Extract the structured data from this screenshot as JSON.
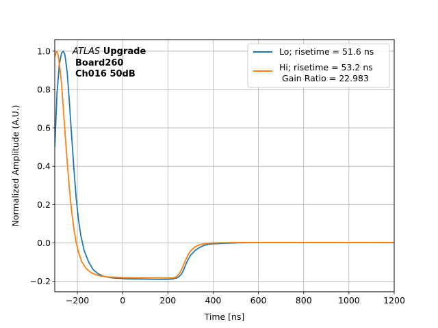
{
  "chart_data": {
    "type": "line",
    "xlabel": "Time [ns]",
    "ylabel": "Normalized Amplitude (A.U.)",
    "xlim": [
      -300,
      1200
    ],
    "ylim": [
      -0.255,
      1.06
    ],
    "xticks": [
      -200,
      0,
      200,
      400,
      600,
      800,
      1000,
      1200
    ],
    "yticks": [
      -0.2,
      0.0,
      0.2,
      0.4,
      0.6,
      0.8,
      1.0
    ],
    "xtick_labels": [
      "−200",
      "0",
      "200",
      "400",
      "600",
      "800",
      "1000",
      "1200"
    ],
    "ytick_labels": [
      "−0.2",
      "0.0",
      "0.2",
      "0.4",
      "0.6",
      "0.8",
      "1.0"
    ],
    "grid": true,
    "legend_position": "top-right",
    "annotation": {
      "line1_italic": "ATLAS",
      "line1_bold": " Upgrade",
      "line2": "Board260",
      "line3": "Ch016 50dB"
    },
    "series": [
      {
        "name": "Lo; risetime = 51.6 ns",
        "color": "#1f77b4",
        "x": [
          -300,
          -290,
          -280,
          -270,
          -262,
          -255,
          -245,
          -235,
          -225,
          -215,
          -205,
          -195,
          -185,
          -170,
          -150,
          -130,
          -110,
          -90,
          -70,
          -50,
          -30,
          -10,
          10,
          50,
          100,
          150,
          200,
          220,
          240,
          250,
          260,
          270,
          280,
          290,
          300,
          320,
          340,
          360,
          380,
          400,
          450,
          500,
          600,
          700,
          800,
          900,
          1000,
          1100,
          1200
        ],
        "y": [
          0.5,
          0.78,
          0.93,
          0.99,
          1.0,
          0.98,
          0.89,
          0.73,
          0.55,
          0.38,
          0.23,
          0.12,
          0.04,
          -0.04,
          -0.1,
          -0.14,
          -0.16,
          -0.172,
          -0.178,
          -0.182,
          -0.184,
          -0.185,
          -0.187,
          -0.188,
          -0.189,
          -0.19,
          -0.19,
          -0.188,
          -0.183,
          -0.175,
          -0.162,
          -0.14,
          -0.11,
          -0.085,
          -0.065,
          -0.04,
          -0.024,
          -0.013,
          -0.007,
          -0.005,
          -0.002,
          0.0,
          0.002,
          0.002,
          0.002,
          0.002,
          0.002,
          0.002,
          0.001
        ]
      },
      {
        "name": "Hi; risetime = 53.2 ns\n Gain Ratio = 22.983",
        "color": "#ff7f0e",
        "x": [
          -300,
          -292,
          -285,
          -278,
          -270,
          -262,
          -255,
          -245,
          -235,
          -225,
          -215,
          -205,
          -195,
          -180,
          -160,
          -140,
          -120,
          -100,
          -80,
          -60,
          -40,
          -20,
          0,
          50,
          100,
          150,
          200,
          220,
          230,
          240,
          250,
          260,
          270,
          280,
          290,
          300,
          320,
          340,
          360,
          380,
          400,
          450,
          500,
          600,
          700,
          800,
          900,
          1000,
          1100,
          1200
        ],
        "y": [
          0.97,
          1.0,
          0.98,
          0.92,
          0.83,
          0.7,
          0.58,
          0.42,
          0.28,
          0.16,
          0.07,
          0.0,
          -0.05,
          -0.1,
          -0.135,
          -0.155,
          -0.165,
          -0.172,
          -0.176,
          -0.178,
          -0.179,
          -0.18,
          -0.181,
          -0.182,
          -0.182,
          -0.182,
          -0.183,
          -0.183,
          -0.181,
          -0.175,
          -0.16,
          -0.14,
          -0.113,
          -0.085,
          -0.06,
          -0.042,
          -0.02,
          -0.01,
          -0.005,
          -0.002,
          0.0,
          0.001,
          0.002,
          0.002,
          0.002,
          0.002,
          0.002,
          0.002,
          0.002,
          0.002
        ]
      }
    ]
  }
}
